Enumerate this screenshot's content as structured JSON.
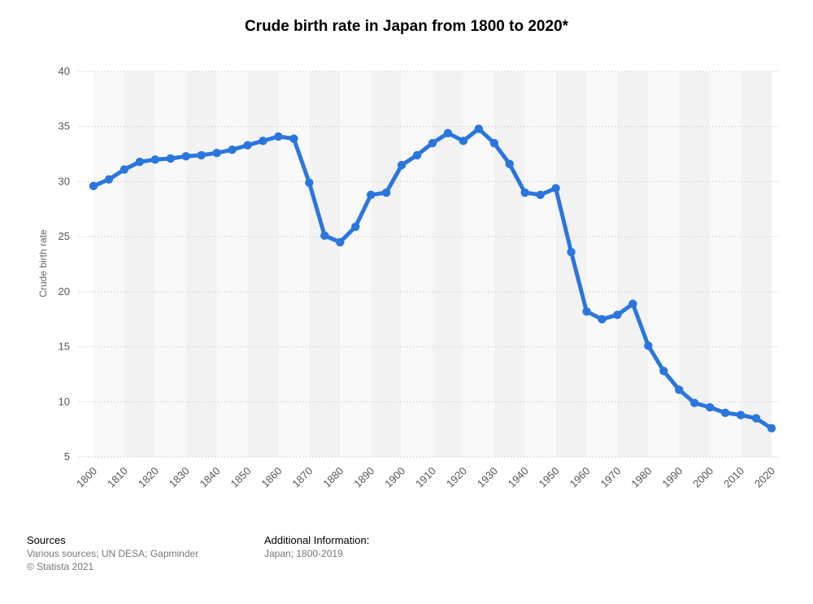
{
  "chart_data": {
    "type": "line",
    "title": "Crude birth rate in Japan from 1800 to 2020*",
    "ylabel": "Crude birth rate",
    "xlabel": "",
    "ylim": [
      5,
      40
    ],
    "yticks": [
      "5",
      "10",
      "15",
      "20",
      "25",
      "30",
      "35",
      "40"
    ],
    "xticks": [
      "1800",
      "1810",
      "1820",
      "1830",
      "1840",
      "1850",
      "1860",
      "1870",
      "1880",
      "1890",
      "1900",
      "1910",
      "1920",
      "1930",
      "1940",
      "1950",
      "1960",
      "1970",
      "1980",
      "1990",
      "2000",
      "2010",
      "2020"
    ],
    "grid": true,
    "legend": "none",
    "line_color": "#2a76dd",
    "x": [
      1800,
      1805,
      1810,
      1815,
      1820,
      1825,
      1830,
      1835,
      1840,
      1845,
      1850,
      1855,
      1860,
      1865,
      1870,
      1875,
      1880,
      1885,
      1890,
      1895,
      1900,
      1905,
      1910,
      1915,
      1920,
      1925,
      1930,
      1935,
      1940,
      1945,
      1950,
      1955,
      1960,
      1965,
      1970,
      1975,
      1980,
      1985,
      1990,
      1995,
      2000,
      2005,
      2010,
      2015,
      2020
    ],
    "values": [
      29.6,
      30.2,
      31.1,
      31.8,
      32.0,
      32.1,
      32.3,
      32.4,
      32.6,
      32.9,
      33.3,
      33.7,
      34.1,
      33.9,
      29.9,
      25.1,
      24.5,
      25.9,
      28.8,
      29.0,
      31.5,
      32.4,
      33.5,
      34.4,
      33.7,
      34.8,
      33.5,
      31.6,
      29.0,
      28.8,
      29.4,
      23.6,
      18.2,
      17.5,
      17.9,
      18.9,
      15.1,
      12.8,
      11.1,
      9.9,
      9.5,
      9.0,
      8.8,
      8.5,
      7.6
    ]
  },
  "footer": {
    "sources_heading": "Sources",
    "sources_text": "Various sources; UN DESA; Gapminder",
    "copyright": "© Statista 2021",
    "additional_heading": "Additional Information:",
    "additional_text": "Japan; 1800-2019"
  }
}
